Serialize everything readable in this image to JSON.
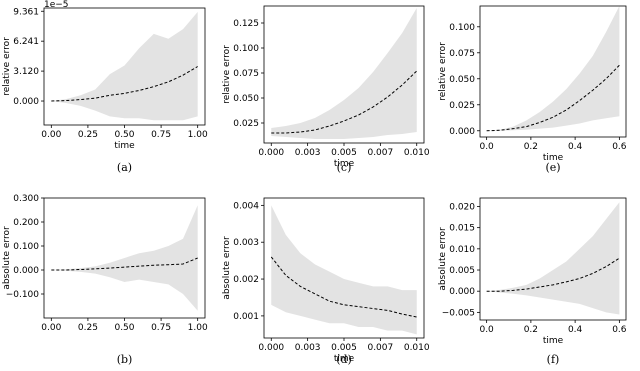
{
  "chart_data": [
    {
      "type": "line",
      "caption": "(a)",
      "xlabel": "time",
      "ylabel": "relative error",
      "offset_text": "1e−5",
      "x": [
        0,
        0.1,
        0.2,
        0.3,
        0.4,
        0.5,
        0.6,
        0.7,
        0.8,
        0.9,
        1.0
      ],
      "values": [
        0,
        0.05,
        0.15,
        0.3,
        0.6,
        0.8,
        1.1,
        1.5,
        2.0,
        2.7,
        3.6
      ],
      "upper": [
        0,
        0.2,
        0.6,
        1.2,
        2.8,
        3.7,
        5.5,
        7.0,
        6.5,
        7.5,
        9.3
      ],
      "lower": [
        0,
        -0.2,
        -0.5,
        -1.0,
        -1.6,
        -1.8,
        -1.8,
        -2.0,
        -2.0,
        -2.0,
        -1.6
      ],
      "line_color": "#000000",
      "band_color": "#e3e3e3",
      "xlim": [
        -0.05,
        1.05
      ],
      "ylim": [
        -2.5,
        9.7
      ],
      "xticks": [
        {
          "value": 0,
          "label": "0.00"
        },
        {
          "value": 0.25,
          "label": "0.25"
        },
        {
          "value": 0.5,
          "label": "0.50"
        },
        {
          "value": 0.75,
          "label": "0.75"
        },
        {
          "value": 1.0,
          "label": "1.00"
        }
      ],
      "yticks": [
        {
          "value": 0,
          "label": "0.000"
        },
        {
          "value": 3.12,
          "label": "3.120"
        },
        {
          "value": 6.241,
          "label": "6.241"
        },
        {
          "value": 9.361,
          "label": "9.361"
        }
      ]
    },
    {
      "type": "line",
      "caption": "(b)",
      "xlabel": "",
      "ylabel": "absolute error",
      "x": [
        0,
        0.1,
        0.2,
        0.3,
        0.4,
        0.5,
        0.6,
        0.7,
        0.8,
        0.9,
        1.0
      ],
      "values": [
        0,
        0,
        0.002,
        0.005,
        0.008,
        0.012,
        0.016,
        0.02,
        0.022,
        0.025,
        0.05
      ],
      "upper": [
        0,
        0.003,
        0.008,
        0.015,
        0.03,
        0.05,
        0.07,
        0.08,
        0.1,
        0.13,
        0.27
      ],
      "lower": [
        0,
        -0.003,
        -0.008,
        -0.015,
        -0.03,
        -0.05,
        -0.04,
        -0.05,
        -0.06,
        -0.1,
        -0.17
      ],
      "line_color": "#000000",
      "band_color": "#e3e3e3",
      "xlim": [
        -0.05,
        1.05
      ],
      "ylim": [
        -0.2,
        0.3
      ],
      "xticks": [
        {
          "value": 0,
          "label": "0.00"
        },
        {
          "value": 0.25,
          "label": "0.25"
        },
        {
          "value": 0.5,
          "label": "0.50"
        },
        {
          "value": 0.75,
          "label": "0.75"
        },
        {
          "value": 1.0,
          "label": "1.00"
        }
      ],
      "yticks": [
        {
          "value": -0.1,
          "label": "−0.100"
        },
        {
          "value": 0,
          "label": "0.000"
        },
        {
          "value": 0.1,
          "label": "0.100"
        },
        {
          "value": 0.2,
          "label": "0.200"
        },
        {
          "value": 0.3,
          "label": "0.300"
        }
      ]
    },
    {
      "type": "line",
      "caption": "(c)",
      "xlabel": "time",
      "ylabel": "relative error",
      "x": [
        0,
        0.001,
        0.002,
        0.003,
        0.004,
        0.005,
        0.006,
        0.007,
        0.008,
        0.009,
        0.01
      ],
      "values": [
        0.015,
        0.015,
        0.016,
        0.018,
        0.022,
        0.027,
        0.033,
        0.041,
        0.051,
        0.063,
        0.077
      ],
      "upper": [
        0.02,
        0.022,
        0.025,
        0.03,
        0.038,
        0.048,
        0.06,
        0.076,
        0.095,
        0.115,
        0.14
      ],
      "lower": [
        0.012,
        0.011,
        0.01,
        0.009,
        0.009,
        0.009,
        0.01,
        0.011,
        0.013,
        0.014,
        0.016
      ],
      "line_color": "#000000",
      "band_color": "#e3e3e3",
      "xlim": [
        -0.0005,
        0.0105
      ],
      "ylim": [
        0.005,
        0.142
      ],
      "xticks": [
        {
          "value": 0,
          "label": "0.000"
        },
        {
          "value": 0.0025,
          "label": "0.003"
        },
        {
          "value": 0.005,
          "label": "0.005"
        },
        {
          "value": 0.0075,
          "label": "0.007"
        },
        {
          "value": 0.01,
          "label": "0.010"
        }
      ],
      "yticks": [
        0.025,
        {
          "value": 0.05,
          "label": "0.050"
        },
        0.075,
        {
          "value": 0.1,
          "label": "0.100"
        },
        0.125
      ]
    },
    {
      "type": "line",
      "caption": "(d)",
      "xlabel": "time",
      "ylabel": "absolute error",
      "x": [
        0,
        0.001,
        0.002,
        0.003,
        0.004,
        0.005,
        0.006,
        0.007,
        0.008,
        0.009,
        0.01
      ],
      "values": [
        0.0026,
        0.0021,
        0.0018,
        0.0016,
        0.0014,
        0.0013,
        0.00125,
        0.0012,
        0.00115,
        0.00105,
        0.00097
      ],
      "upper": [
        0.004,
        0.0032,
        0.0027,
        0.0024,
        0.0022,
        0.002,
        0.0019,
        0.0018,
        0.0018,
        0.0017,
        0.0017
      ],
      "lower": [
        0.0013,
        0.0011,
        0.001,
        0.0009,
        0.0008,
        0.0008,
        0.0007,
        0.0007,
        0.0006,
        0.0006,
        0.0005
      ],
      "line_color": "#000000",
      "band_color": "#e3e3e3",
      "xlim": [
        -0.0005,
        0.0105
      ],
      "ylim": [
        0.0004,
        0.0042
      ],
      "xticks": [
        {
          "value": 0,
          "label": "0.000"
        },
        {
          "value": 0.0025,
          "label": "0.003"
        },
        {
          "value": 0.005,
          "label": "0.005"
        },
        {
          "value": 0.0075,
          "label": "0.007"
        },
        {
          "value": 0.01,
          "label": "0.010"
        }
      ],
      "yticks": [
        0.001,
        0.002,
        0.003,
        0.004
      ]
    },
    {
      "type": "line",
      "caption": "(e)",
      "xlabel": "time",
      "ylabel": "relative error",
      "x": [
        0,
        0.06,
        0.12,
        0.18,
        0.24,
        0.3,
        0.36,
        0.42,
        0.48,
        0.54,
        0.6
      ],
      "values": [
        0,
        0.0005,
        0.002,
        0.004,
        0.008,
        0.013,
        0.02,
        0.029,
        0.039,
        0.05,
        0.063
      ],
      "upper": [
        0,
        0.001,
        0.004,
        0.01,
        0.018,
        0.028,
        0.04,
        0.055,
        0.072,
        0.095,
        0.12
      ],
      "lower": [
        0,
        0,
        0.0005,
        0.001,
        0.002,
        0.003,
        0.005,
        0.007,
        0.01,
        0.012,
        0.014
      ],
      "line_color": "#000000",
      "band_color": "#e3e3e3",
      "xlim": [
        -0.03,
        0.63
      ],
      "ylim": [
        -0.006,
        0.12
      ],
      "xticks": [
        {
          "value": 0,
          "label": "0.0"
        },
        0.2,
        0.4,
        0.6
      ],
      "yticks": [
        {
          "value": 0,
          "label": "0.000"
        },
        0.025,
        {
          "value": 0.05,
          "label": "0.050"
        },
        0.075,
        {
          "value": 0.1,
          "label": "0.100"
        }
      ]
    },
    {
      "type": "line",
      "caption": "(f)",
      "xlabel": "time",
      "ylabel": "absolute error",
      "x": [
        0,
        0.06,
        0.12,
        0.18,
        0.24,
        0.3,
        0.36,
        0.42,
        0.48,
        0.54,
        0.6
      ],
      "values": [
        0,
        0,
        0.0002,
        0.0005,
        0.001,
        0.0015,
        0.0022,
        0.003,
        0.0042,
        0.0058,
        0.0078
      ],
      "upper": [
        0,
        0.0003,
        0.0008,
        0.0015,
        0.003,
        0.005,
        0.007,
        0.01,
        0.013,
        0.017,
        0.021
      ],
      "lower": [
        0,
        -0.0003,
        -0.0006,
        -0.001,
        -0.0015,
        -0.002,
        -0.0025,
        -0.003,
        -0.004,
        -0.005,
        -0.0055
      ],
      "line_color": "#000000",
      "band_color": "#e3e3e3",
      "xlim": [
        -0.03,
        0.63
      ],
      "ylim": [
        -0.0068,
        0.022
      ],
      "xticks": [
        {
          "value": 0,
          "label": "0.0"
        },
        0.2,
        0.4,
        0.6
      ],
      "yticks": [
        {
          "value": -0.005,
          "label": "−0.005"
        },
        {
          "value": 0,
          "label": "0.000"
        },
        0.005,
        {
          "value": 0.01,
          "label": "0.010"
        },
        0.015,
        {
          "value": 0.02,
          "label": "0.020"
        }
      ]
    }
  ]
}
